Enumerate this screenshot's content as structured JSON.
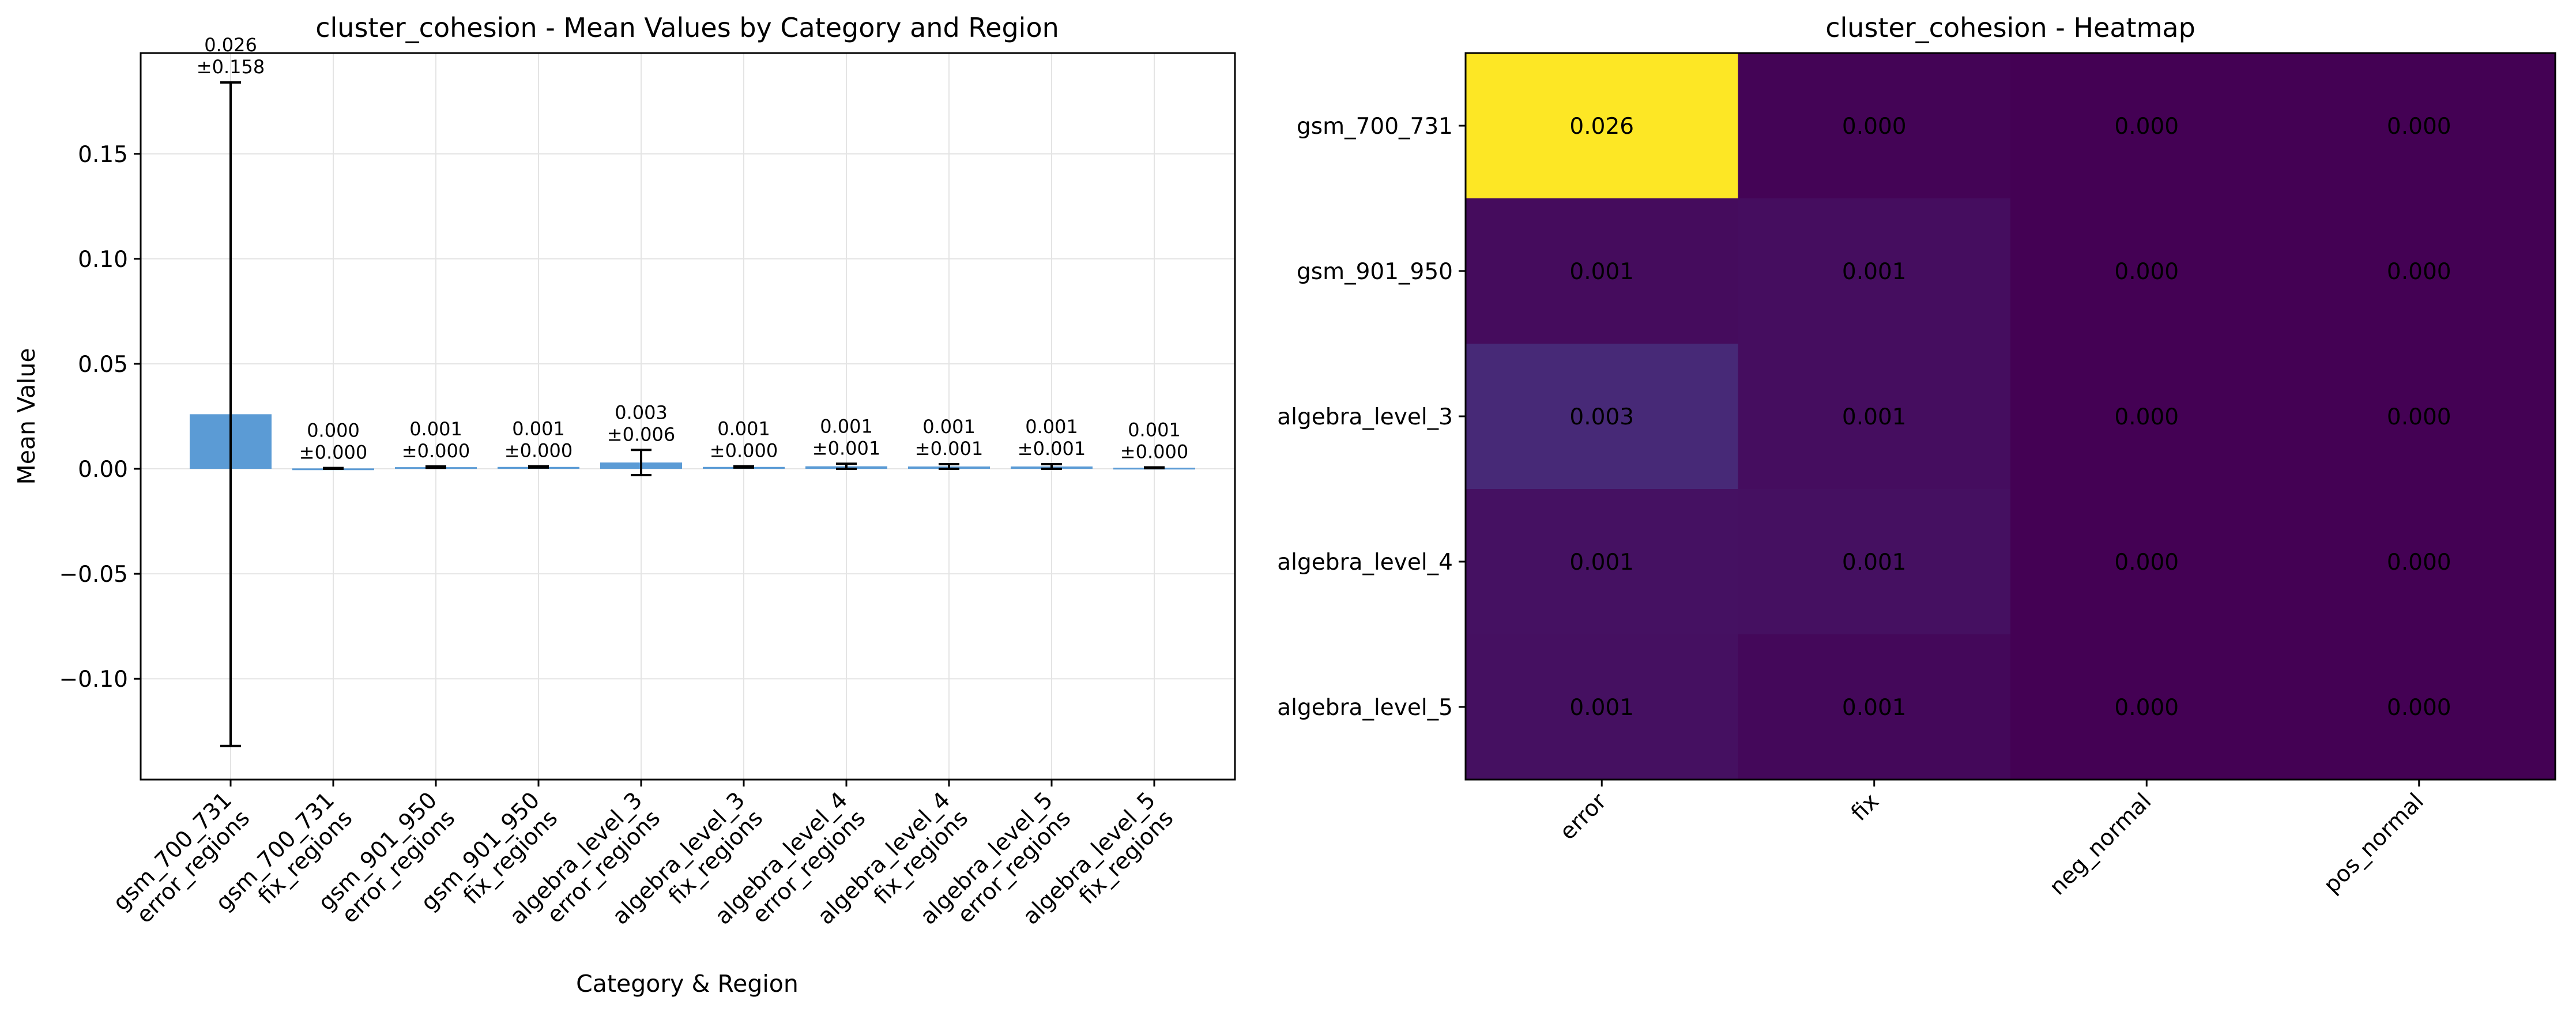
{
  "colors": {
    "bar": "#5b9bd5",
    "error_bar": "#000000",
    "grid": "#e4e4e4"
  },
  "chart_data": [
    {
      "type": "bar",
      "title": "cluster_cohesion - Mean Values by Category and Region",
      "xlabel": "Category & Region",
      "ylabel": "Mean Value",
      "ylim": [
        -0.148,
        0.198
      ],
      "yticks": [
        -0.1,
        -0.05,
        0.0,
        0.05,
        0.1,
        0.15
      ],
      "ytick_labels": [
        "−0.10",
        "−0.05",
        "0.00",
        "0.05",
        "0.10",
        "0.15"
      ],
      "grid": true,
      "categories": [
        [
          "gsm_700_731",
          "error_regions"
        ],
        [
          "gsm_700_731",
          "fix_regions"
        ],
        [
          "gsm_901_950",
          "error_regions"
        ],
        [
          "gsm_901_950",
          "fix_regions"
        ],
        [
          "algebra_level_3",
          "error_regions"
        ],
        [
          "algebra_level_3",
          "fix_regions"
        ],
        [
          "algebra_level_4",
          "error_regions"
        ],
        [
          "algebra_level_4",
          "fix_regions"
        ],
        [
          "algebra_level_5",
          "error_regions"
        ],
        [
          "algebra_level_5",
          "fix_regions"
        ]
      ],
      "values": [
        0.026,
        0.0002,
        0.0008,
        0.0009,
        0.003,
        0.0009,
        0.0012,
        0.0011,
        0.0011,
        0.0005
      ],
      "errors": [
        0.158,
        0.0002,
        0.0003,
        0.0003,
        0.006,
        0.0003,
        0.0012,
        0.0011,
        0.0011,
        0.0002
      ],
      "value_labels": [
        "0.026",
        "0.000",
        "0.001",
        "0.001",
        "0.003",
        "0.001",
        "0.001",
        "0.001",
        "0.001",
        "0.001"
      ],
      "error_labels": [
        "±0.158",
        "±0.000",
        "±0.000",
        "±0.000",
        "±0.006",
        "±0.000",
        "±0.001",
        "±0.001",
        "±0.001",
        "±0.000"
      ]
    },
    {
      "type": "heatmap",
      "title": "cluster_cohesion - Heatmap",
      "colormap": "viridis",
      "vmin": 0.0,
      "vmax": 0.026,
      "rows": [
        "gsm_700_731",
        "gsm_901_950",
        "algebra_level_3",
        "algebra_level_4",
        "algebra_level_5"
      ],
      "columns": [
        "error",
        "fix",
        "neg_normal",
        "pos_normal"
      ],
      "values": [
        [
          0.026,
          0.0002,
          0.0,
          0.0
        ],
        [
          0.0008,
          0.0009,
          0.0,
          0.0
        ],
        [
          0.003,
          0.0009,
          0.0,
          0.0
        ],
        [
          0.0012,
          0.0011,
          0.0,
          0.0
        ],
        [
          0.0011,
          0.0005,
          0.0,
          0.0
        ]
      ],
      "cell_labels": [
        [
          "0.026",
          "0.000",
          "0.000",
          "0.000"
        ],
        [
          "0.001",
          "0.001",
          "0.000",
          "0.000"
        ],
        [
          "0.003",
          "0.001",
          "0.000",
          "0.000"
        ],
        [
          "0.001",
          "0.001",
          "0.000",
          "0.000"
        ],
        [
          "0.001",
          "0.001",
          "0.000",
          "0.000"
        ]
      ]
    }
  ]
}
